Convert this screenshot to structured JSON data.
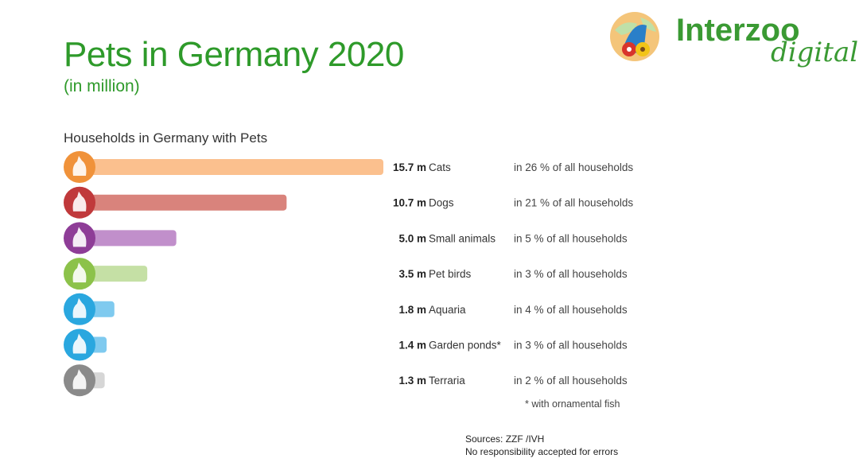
{
  "header": {
    "title": "Pets in Germany 2020",
    "subtitle": "(in million)"
  },
  "logo": {
    "name": "Interzoo",
    "tagline": "digital",
    "color": "#3a9a33"
  },
  "chart_data": {
    "type": "bar",
    "orientation": "horizontal",
    "title": "Households in Germany with Pets",
    "categories": [
      "Cats",
      "Dogs",
      "Small animals",
      "Pet birds",
      "Aquaria",
      "Garden ponds*",
      "Terraria"
    ],
    "values": [
      15.7,
      10.7,
      5.0,
      3.5,
      1.8,
      1.4,
      1.3
    ],
    "value_labels": [
      "15.7 m",
      "10.7 m",
      "5.0 m",
      "3.5 m",
      "1.8 m",
      "1.4 m",
      "1.3 m"
    ],
    "household_shares": [
      "in 26 % of all households",
      "in 21 % of all households",
      "in  5 % of all households",
      "in  3 % of all households",
      "in  4 % of all households",
      "in  3 % of all households",
      "in  2 % of all households"
    ],
    "icons": [
      "cat-icon",
      "dog-icon",
      "rabbit-icon",
      "bird-icon",
      "fish-icon",
      "pond-icon",
      "turtle-icon"
    ],
    "bar_colors": [
      "#fbc08e",
      "#d9837c",
      "#c18fcb",
      "#c5e0a5",
      "#7fcaef",
      "#7fcaef",
      "#d6d6d6"
    ],
    "icon_colors": [
      "#f0923a",
      "#c0393b",
      "#8e3d97",
      "#8cc24a",
      "#2aa7df",
      "#2aa7df",
      "#8a8a8a"
    ],
    "grid": false,
    "legend": "none",
    "note": "* with ornamental fish"
  },
  "footer": {
    "source": "Sources: ZZF /IVH",
    "disclaimer": "No responsibility accepted for errors"
  }
}
